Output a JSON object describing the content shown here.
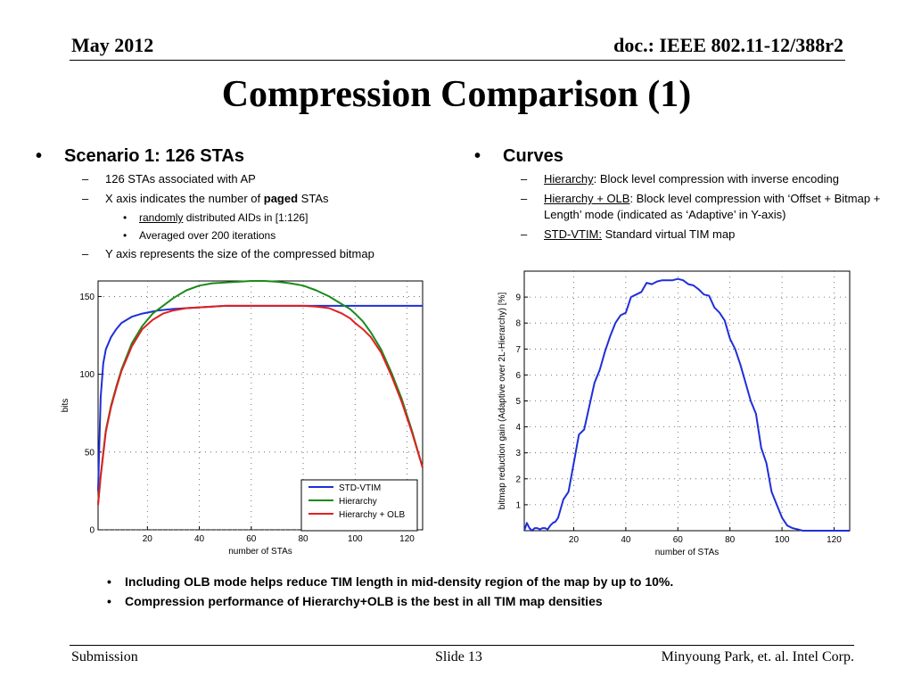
{
  "header": {
    "date": "May 2012",
    "doc": "doc.: IEEE 802.11-12/388r2"
  },
  "title": "Compression Comparison (1)",
  "left_column": {
    "heading": "Scenario 1: 126 STAs",
    "item1": "126 STAs associated with AP",
    "item2_prefix": "X axis indicates the number of ",
    "item2_bold": "paged",
    "item2_suffix": " STAs",
    "sub1_underlined": "randomly",
    "sub1_rest": " distributed AIDs in [1:126]",
    "sub2": "Averaged over 200 iterations",
    "item3": "Y axis represents the size of the compressed bitmap"
  },
  "right_column": {
    "heading": "Curves",
    "curve1_name": "Hierarchy",
    "curve1_desc": ": Block level compression with inverse encoding",
    "curve2_name": "Hierarchy + OLB",
    "curve2_desc": ": Block level compression with ‘Offset + Bitmap + Length’ mode (indicated as ‘Adaptive’ in Y-axis)",
    "curve3_name": "STD-VTIM:",
    "curve3_desc": " Standard  virtual TIM map"
  },
  "bullets": {
    "level1": "•",
    "level2": "–",
    "level3": "•"
  },
  "notes": [
    "Including OLB mode helps reduce TIM length in mid-density region of the map by up to 10%.",
    "Compression performance of Hierarchy+OLB is the best in all TIM map densities"
  ],
  "footer": {
    "left": "Submission",
    "center": "Slide 13",
    "right": "Minyoung Park, et. al. Intel Corp."
  },
  "chart_data": [
    {
      "type": "line",
      "title": "",
      "xlabel": "number of STAs",
      "ylabel": "bits",
      "xlim": [
        1,
        126
      ],
      "ylim": [
        0,
        160
      ],
      "x_ticks": [
        20,
        40,
        60,
        80,
        100,
        120
      ],
      "y_ticks": [
        0,
        50,
        100,
        150
      ],
      "grid": true,
      "legend_position": "bottom-right",
      "series": [
        {
          "name": "STD-VTIM",
          "color": "#1f2fd8",
          "x": [
            1,
            2,
            3,
            4,
            6,
            8,
            10,
            14,
            18,
            24,
            30,
            40,
            50,
            60,
            80,
            90,
            100,
            110,
            120,
            126
          ],
          "values": [
            25,
            85,
            107,
            116,
            124,
            129,
            133,
            137,
            139,
            141,
            142,
            143,
            144,
            144,
            144,
            144,
            144,
            144,
            144,
            144
          ]
        },
        {
          "name": "Hierarchy",
          "color": "#1b8a1b",
          "x": [
            1,
            2,
            4,
            6,
            8,
            10,
            14,
            18,
            22,
            26,
            30,
            35,
            40,
            45,
            50,
            55,
            60,
            65,
            70,
            75,
            80,
            85,
            90,
            95,
            98,
            100,
            103,
            106,
            110,
            114,
            118,
            122,
            126
          ],
          "values": [
            17,
            35,
            64,
            80,
            92,
            103,
            120,
            131,
            139,
            144,
            149,
            154,
            157,
            158.5,
            159,
            159.5,
            160,
            160,
            159.5,
            158.5,
            157,
            154,
            150,
            145,
            142,
            139,
            134,
            127,
            116,
            101,
            84,
            63,
            40
          ]
        },
        {
          "name": "Hierarchy + OLB",
          "color": "#e02020",
          "x": [
            1,
            2,
            4,
            6,
            8,
            10,
            14,
            18,
            22,
            26,
            30,
            35,
            40,
            45,
            50,
            55,
            60,
            65,
            70,
            75,
            80,
            85,
            90,
            95,
            98,
            100,
            103,
            106,
            110,
            114,
            118,
            122,
            126
          ],
          "values": [
            16,
            34,
            63,
            79,
            91,
            102,
            118,
            129,
            135,
            139,
            141,
            142.5,
            143,
            143.5,
            144,
            144,
            144,
            144,
            144,
            144,
            144,
            143.5,
            142.5,
            139,
            136,
            133,
            129,
            124,
            114,
            99,
            82,
            62,
            40
          ]
        }
      ]
    },
    {
      "type": "line",
      "title": "",
      "xlabel": "number of STAs",
      "ylabel": "bitmap reduction gain (Adaptive over 2L-Hierarchy) [%]",
      "xlim": [
        1,
        126
      ],
      "ylim": [
        0,
        10
      ],
      "x_ticks": [
        20,
        40,
        60,
        80,
        100,
        120
      ],
      "y_ticks": [
        1,
        2,
        3,
        4,
        5,
        6,
        7,
        8,
        9
      ],
      "grid": true,
      "series": [
        {
          "name": "",
          "color": "#1f2fd8",
          "x": [
            1,
            2,
            3,
            4,
            5,
            6,
            7,
            8,
            9,
            10,
            11,
            12,
            13,
            14,
            16,
            18,
            20,
            22,
            24,
            26,
            28,
            30,
            32,
            34,
            36,
            38,
            40,
            42,
            44,
            46,
            48,
            50,
            52,
            54,
            56,
            58,
            60,
            62,
            64,
            66,
            68,
            70,
            72,
            74,
            76,
            78,
            80,
            82,
            84,
            86,
            88,
            90,
            92,
            94,
            96,
            98,
            100,
            102,
            104,
            106,
            108,
            110,
            112,
            116,
            120,
            126
          ],
          "values": [
            0,
            0.3,
            0.1,
            0,
            0.1,
            0.1,
            0.05,
            0.1,
            0.1,
            0.05,
            0.2,
            0.3,
            0.35,
            0.5,
            1.2,
            1.5,
            2.6,
            3.7,
            3.9,
            4.8,
            5.7,
            6.2,
            6.9,
            7.5,
            8.0,
            8.3,
            8.4,
            9.0,
            9.1,
            9.2,
            9.55,
            9.5,
            9.6,
            9.65,
            9.65,
            9.65,
            9.7,
            9.65,
            9.5,
            9.45,
            9.3,
            9.1,
            9.05,
            8.6,
            8.4,
            8.1,
            7.4,
            7.0,
            6.4,
            5.7,
            5.0,
            4.5,
            3.2,
            2.6,
            1.5,
            1.0,
            0.5,
            0.2,
            0.1,
            0.05,
            0,
            0,
            0,
            0,
            0,
            0
          ]
        }
      ]
    }
  ]
}
